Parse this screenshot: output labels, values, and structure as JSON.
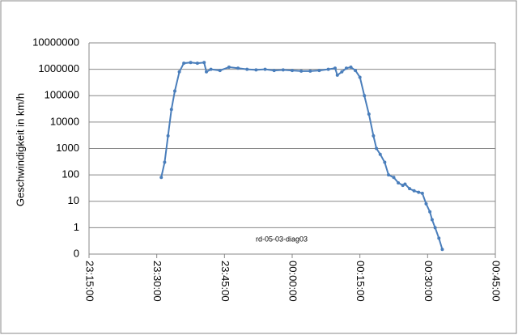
{
  "chart_data": {
    "type": "line",
    "y_label": "Geschwindigkeit in km/h",
    "annotation": "rd-05-03-diag03",
    "log_y": true,
    "grid": true,
    "ylim": [
      0.1,
      10000000
    ],
    "yticks": [
      {
        "value": 0.1,
        "label": "0"
      },
      1,
      10,
      100,
      1000,
      10000,
      100000,
      1000000,
      10000000
    ],
    "xlim": [
      "23:15:00",
      "00:45:00"
    ],
    "xticks": [
      "23:15:00",
      "23:30:00",
      "23:45:00",
      "00:00:00",
      "00:15:00",
      "00:30:00",
      "00:45:00"
    ],
    "series": [
      {
        "name": "rd-05-03-diag03",
        "color": "#4a7ebb",
        "x": [
          "23:31:00",
          "23:31:45",
          "23:32:30",
          "23:33:15",
          "23:34:00",
          "23:35:00",
          "23:36:00",
          "23:37:30",
          "23:39:00",
          "23:40:30",
          "23:41:00",
          "23:42:00",
          "23:44:00",
          "23:46:00",
          "23:48:00",
          "23:50:00",
          "23:52:00",
          "23:54:00",
          "23:56:00",
          "23:58:00",
          "00:00:00",
          "00:02:00",
          "00:04:00",
          "00:06:00",
          "00:08:00",
          "00:09:30",
          "00:10:00",
          "00:11:00",
          "00:12:00",
          "00:13:00",
          "00:14:00",
          "00:15:00",
          "00:16:00",
          "00:17:00",
          "00:18:00",
          "00:18:40",
          "00:19:30",
          "00:20:30",
          "00:21:20",
          "00:22:30",
          "00:23:30",
          "00:24:30",
          "00:25:00",
          "00:26:00",
          "00:27:00",
          "00:28:00",
          "00:28:50",
          "00:29:40",
          "00:30:30",
          "00:31:00",
          "00:31:40",
          "00:32:30",
          "00:33:15"
        ],
        "values": [
          80,
          300,
          3000,
          30000,
          150000,
          800000,
          1700000,
          1800000,
          1700000,
          1800000,
          800000,
          1000000,
          900000,
          1200000,
          1100000,
          1000000,
          950000,
          1000000,
          900000,
          950000,
          900000,
          850000,
          850000,
          900000,
          1000000,
          1100000,
          600000,
          800000,
          1100000,
          1200000,
          900000,
          500000,
          100000,
          20000,
          3000,
          1000,
          600,
          300,
          100,
          80,
          50,
          40,
          45,
          30,
          25,
          22,
          20,
          8,
          4,
          2,
          1,
          0.4,
          0.15
        ]
      }
    ]
  }
}
